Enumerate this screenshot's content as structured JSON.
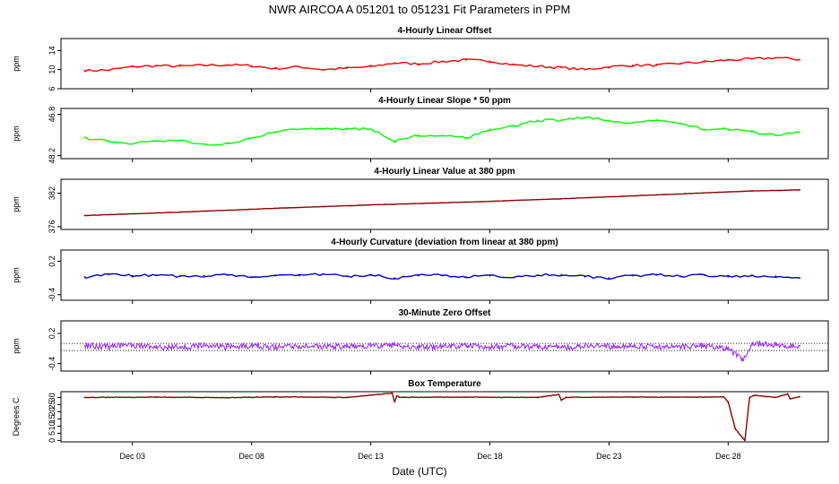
{
  "title": "NWR   AIRCOA A   051201 to 051231   Fit Parameters in PPM",
  "xlabel": "Date (UTC)",
  "x_ticks": [
    "Dec 03",
    "Dec 08",
    "Dec 13",
    "Dec 18",
    "Dec 23",
    "Dec 28"
  ],
  "x_tick_days": [
    3,
    8,
    13,
    18,
    23,
    28
  ],
  "x_range_days": [
    0.0,
    32.2
  ],
  "chart_data": [
    {
      "type": "line",
      "title": "4-Hourly Linear Offset",
      "ylabel": "ppm",
      "color": "#ff0000",
      "ylim": [
        6,
        16.5
      ],
      "yticks": [
        6,
        10,
        14
      ],
      "series": [
        {
          "x": [
            1.0,
            2.0,
            3.0,
            4.0,
            5.0,
            6.0,
            7.0,
            8.0,
            9.0,
            10.0,
            11.0,
            12.0,
            13.0,
            14.0,
            15.0,
            16.0,
            17.0,
            18.0,
            19.0,
            20.0,
            21.0,
            22.0,
            23.0,
            24.0,
            25.0,
            26.0,
            27.0,
            28.0,
            29.0,
            30.0,
            31.0
          ],
          "values": [
            9.8,
            9.9,
            10.6,
            10.8,
            10.7,
            10.9,
            11.0,
            10.8,
            10.2,
            10.6,
            10.0,
            10.3,
            10.6,
            11.4,
            11.2,
            11.7,
            12.0,
            11.8,
            11.0,
            10.7,
            10.4,
            10.0,
            10.6,
            10.9,
            10.9,
            11.3,
            11.6,
            12.0,
            12.2,
            12.5,
            12.1
          ]
        }
      ]
    },
    {
      "type": "line",
      "title": "4-Hourly Linear Slope * 50 ppm",
      "ylabel": "ppm",
      "color": "#00ff00",
      "ylim": [
        48.3,
        46.6
      ],
      "yticks": [
        46.8,
        48.2
      ],
      "series": [
        {
          "x": [
            1.0,
            2.0,
            3.0,
            4.0,
            5.0,
            6.0,
            7.0,
            8.0,
            9.0,
            10.0,
            11.0,
            12.0,
            13.0,
            14.0,
            15.0,
            16.0,
            17.0,
            18.0,
            19.0,
            20.0,
            21.0,
            22.0,
            23.0,
            24.0,
            25.0,
            26.0,
            27.0,
            28.0,
            29.0,
            30.0,
            31.0
          ],
          "values": [
            47.6,
            47.7,
            47.8,
            47.7,
            47.7,
            47.8,
            47.8,
            47.6,
            47.4,
            47.3,
            47.3,
            47.3,
            47.3,
            47.7,
            47.5,
            47.5,
            47.6,
            47.3,
            47.2,
            47.0,
            47.0,
            46.9,
            47.0,
            47.1,
            47.0,
            47.1,
            47.3,
            47.3,
            47.4,
            47.5,
            47.4
          ]
        }
      ]
    },
    {
      "type": "line",
      "title": "4-Hourly Linear Value at 380 ppm",
      "ylabel": "ppm",
      "color": "#8b0000",
      "ylim": [
        375.5,
        384.5
      ],
      "yticks": [
        376,
        382
      ],
      "series": [
        {
          "x": [
            1.0,
            5.0,
            9.0,
            13.0,
            17.0,
            21.0,
            25.0,
            29.0,
            31.0
          ],
          "values": [
            378.0,
            378.6,
            379.3,
            379.9,
            380.4,
            381.0,
            381.7,
            382.4,
            382.6
          ]
        }
      ]
    },
    {
      "type": "line",
      "title": "4-Hourly Curvature (deviation from linear at 380 ppm)",
      "ylabel": "ppm",
      "color": "#0000cc",
      "ylim": [
        -0.5,
        0.4
      ],
      "yticks": [
        -0.4,
        0.2
      ],
      "series": [
        {
          "x": [
            1.0,
            2.0,
            3.0,
            4.0,
            5.0,
            6.0,
            7.0,
            8.0,
            9.0,
            10.0,
            11.0,
            12.0,
            13.0,
            14.0,
            15.0,
            16.0,
            17.0,
            18.0,
            19.0,
            20.0,
            21.0,
            22.0,
            23.0,
            24.0,
            25.0,
            26.0,
            27.0,
            28.0,
            29.0,
            30.0,
            31.0
          ],
          "values": [
            -0.08,
            -0.04,
            -0.06,
            -0.05,
            -0.07,
            -0.06,
            -0.04,
            -0.08,
            -0.05,
            -0.06,
            -0.03,
            -0.07,
            -0.05,
            -0.1,
            -0.06,
            -0.05,
            -0.08,
            -0.06,
            -0.09,
            -0.05,
            -0.04,
            -0.08,
            -0.1,
            -0.06,
            -0.04,
            -0.07,
            -0.05,
            -0.08,
            -0.06,
            -0.07,
            -0.1
          ]
        }
      ]
    },
    {
      "type": "scatter",
      "title": "30-Minute Zero Offset",
      "ylabel": "ppm",
      "color": "#9b30ff",
      "ylim": [
        -0.55,
        0.45
      ],
      "yticks": [
        -0.4,
        0.2
      ],
      "reference_lines": [
        0.0,
        -0.14
      ],
      "series": [
        {
          "x": [
            1.0,
            2.0,
            3.0,
            4.0,
            5.0,
            6.0,
            7.0,
            8.0,
            9.0,
            10.0,
            11.0,
            12.0,
            13.0,
            14.0,
            15.0,
            16.0,
            17.0,
            18.0,
            19.0,
            20.0,
            21.0,
            22.0,
            23.0,
            24.0,
            25.0,
            26.0,
            27.0,
            28.0,
            28.6,
            29.0,
            30.0,
            31.0
          ],
          "values": [
            -0.05,
            -0.06,
            -0.03,
            -0.08,
            -0.07,
            -0.05,
            -0.06,
            -0.04,
            -0.07,
            -0.05,
            -0.06,
            -0.06,
            -0.05,
            -0.03,
            -0.08,
            -0.06,
            -0.05,
            -0.07,
            -0.05,
            -0.06,
            -0.07,
            -0.05,
            -0.06,
            -0.05,
            -0.06,
            -0.07,
            -0.05,
            -0.1,
            -0.32,
            0.0,
            -0.03,
            -0.05
          ]
        }
      ]
    },
    {
      "type": "line",
      "title": "Box Temperature",
      "ylabel": "Degrees C",
      "color": "#8b0000",
      "ylim": [
        -1,
        34
      ],
      "yticks": [
        0,
        5,
        10,
        15,
        20,
        25,
        30
      ],
      "series": [
        {
          "x": [
            1.0,
            4.0,
            7.0,
            9.0,
            12.0,
            13.9,
            14.0,
            14.1,
            14.2,
            14.4,
            17.0,
            20.0,
            20.9,
            21.0,
            21.2,
            24.0,
            27.0,
            27.8,
            28.0,
            28.3,
            28.7,
            28.9,
            29.1,
            30.0,
            30.5,
            30.6,
            31.0
          ],
          "values": [
            30.0,
            30.2,
            29.8,
            30.4,
            30.0,
            33.0,
            27.0,
            31.0,
            30.0,
            30.1,
            30.2,
            30.0,
            32.0,
            28.0,
            30.1,
            30.2,
            30.2,
            30.5,
            27.0,
            8.0,
            0.0,
            30.0,
            31.5,
            30.0,
            32.5,
            29.0,
            30.5
          ]
        }
      ]
    }
  ]
}
